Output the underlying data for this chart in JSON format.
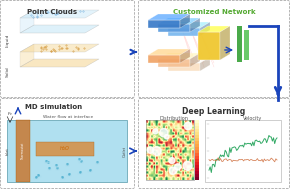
{
  "bg_color": "#ffffff",
  "box_border_color": "#999999",
  "top_left_title": "Point Clouds",
  "top_right_title": "Customized Network",
  "bot_left_title": "MD simulation",
  "bot_right_title": "Deep Learning",
  "liquid_color": "#c8e8f8",
  "solid_color": "#f5d898",
  "blue_layer_dark": "#3a7bc8",
  "blue_layer_mid": "#5a9bde",
  "blue_layer_light": "#7ab8ee",
  "orange_layer_dark": "#f0a060",
  "orange_layer_mid": "#f5be90",
  "orange_layer_light": "#fadfc0",
  "yellow_layer_color": "#f0c830",
  "green_bar1": "#4aaa4a",
  "green_bar2": "#6aca6a",
  "arrow_color": "#1a44bb",
  "md_water_color": "#b0e0f0",
  "md_substrate_color": "#d8b870",
  "md_thermostat_color": "#c87830",
  "dist_bg_color": "#4488cc",
  "vel_line_color": "#33aa66",
  "vel_ref_color": "#cc6633",
  "pink_line_color": "#ffaaaa"
}
